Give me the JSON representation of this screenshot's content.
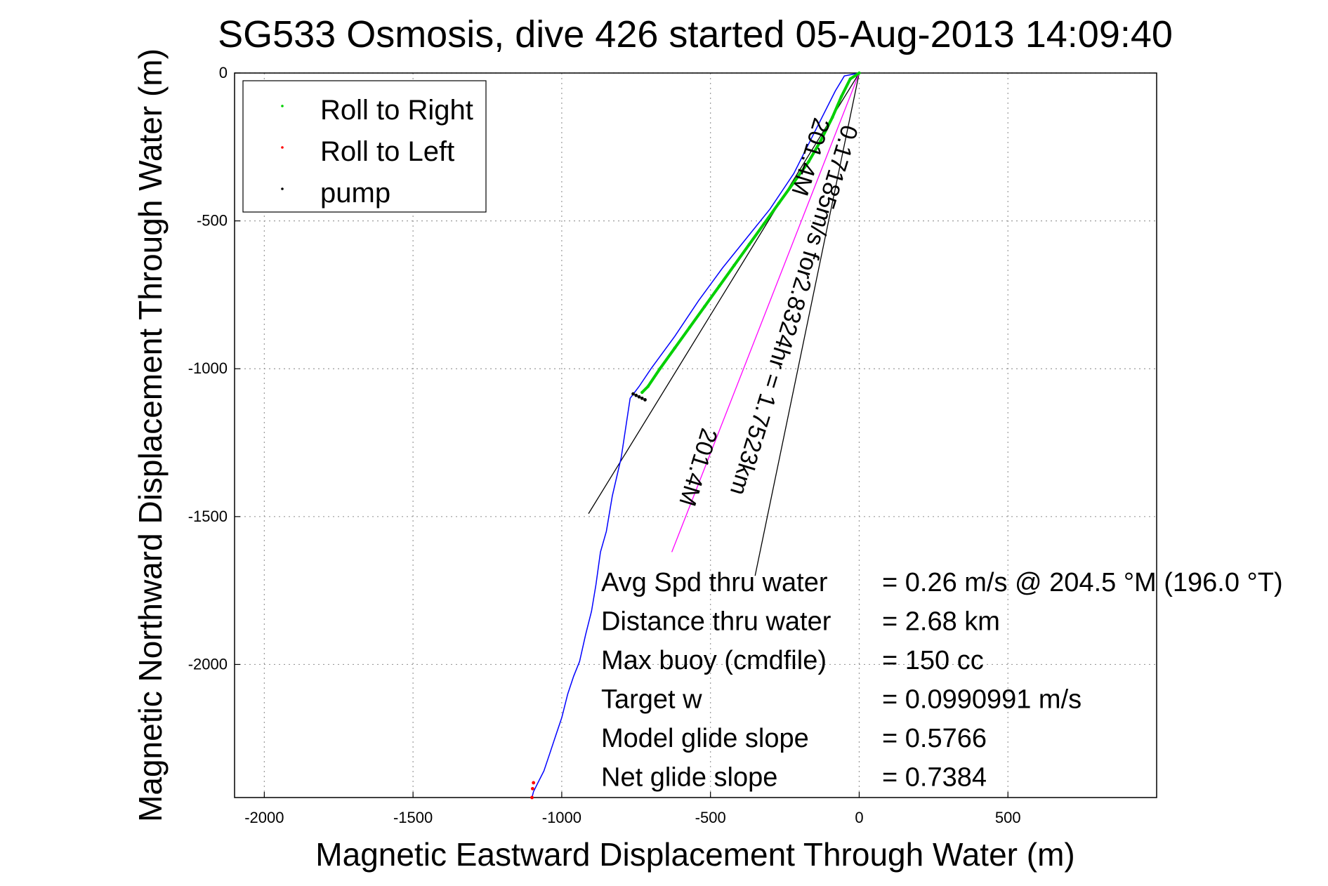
{
  "chart_data": {
    "type": "line",
    "title": "SG533 Osmosis, dive 426 started 05-Aug-2013 14:09:40",
    "xlabel": "Magnetic Eastward Displacement Through Water (m)",
    "ylabel": "Magnetic Northward Displacement Through Water (m)",
    "xlim": [
      -2100,
      1000
    ],
    "ylim": [
      -2450,
      0
    ],
    "x_ticks": [
      -2000,
      -1500,
      -1000,
      -500,
      0,
      500
    ],
    "y_ticks": [
      0,
      -500,
      -1000,
      -1500,
      -2000
    ],
    "grid": true,
    "legend_position": "top-left",
    "legend": [
      {
        "label": "Roll to Right",
        "color": "#00d000"
      },
      {
        "label": "Roll to Left",
        "color": "#ff0000"
      },
      {
        "label": "pump",
        "color": "#000000"
      }
    ],
    "track": {
      "color": "#0000ff",
      "x": [
        0,
        -50,
        -80,
        -150,
        -220,
        -300,
        -380,
        -460,
        -540,
        -620,
        -700,
        -740,
        -770,
        -800,
        -830,
        -850,
        -870,
        -885,
        -900,
        -920,
        -940,
        -960,
        -980,
        -1000,
        -1020,
        -1040,
        -1060,
        -1080,
        -1095,
        -1100
      ],
      "y": [
        0,
        -10,
        -60,
        -200,
        -340,
        -460,
        -560,
        -660,
        -770,
        -890,
        -1000,
        -1060,
        -1100,
        -1300,
        -1430,
        -1550,
        -1620,
        -1730,
        -1820,
        -1900,
        -1990,
        -2040,
        -2100,
        -2180,
        -2240,
        -2300,
        -2360,
        -2400,
        -2430,
        -2450
      ]
    },
    "roll_right": {
      "x": [
        0,
        -30,
        -60,
        -90,
        -130,
        -170,
        -220,
        -270,
        -320,
        -370,
        -420,
        -470,
        -520,
        -570,
        -620,
        -670,
        -710,
        -730
      ],
      "y": [
        0,
        -20,
        -80,
        -150,
        -230,
        -300,
        -370,
        -440,
        -510,
        -580,
        -650,
        -720,
        -790,
        -860,
        -930,
        -1000,
        -1060,
        -1080
      ]
    },
    "roll_left": {
      "x": [
        -1100,
        -1098,
        -1095
      ],
      "y": [
        -2450,
        -2420,
        -2400
      ]
    },
    "pump": {
      "x": [
        -760,
        -750,
        -740,
        -730,
        -720
      ],
      "y": [
        -1085,
        -1090,
        -1095,
        -1100,
        -1105
      ]
    },
    "heading_line": {
      "color": "#ff00ff",
      "x": [
        0,
        -630
      ],
      "y": [
        0,
        -1620
      ]
    },
    "current_lines": [
      {
        "x": [
          0,
          -910
        ],
        "y": [
          0,
          -1490
        ]
      },
      {
        "x": [
          0,
          -350
        ],
        "y": [
          0,
          -1700
        ]
      }
    ],
    "annotations": {
      "rotated_upper": "0.17185m/s for2.8324hr = 1.7523km",
      "rotated_mid": "201.4M",
      "rotated_lower": "201.4M"
    },
    "stats": [
      {
        "label": "Avg Spd thru water",
        "value": "=  0.26 m/s @ 204.5 °M (196.0 °T)"
      },
      {
        "label": "Distance thru water",
        "value": "=  2.68 km"
      },
      {
        "label": "Max buoy (cmdfile)",
        "value": "= 150 cc"
      },
      {
        "label": "Target w",
        "value": "= 0.0990991 m/s"
      },
      {
        "label": "Model glide slope",
        "value": "= 0.5766"
      },
      {
        "label": "Net glide slope",
        "value": "= 0.7384"
      }
    ]
  }
}
